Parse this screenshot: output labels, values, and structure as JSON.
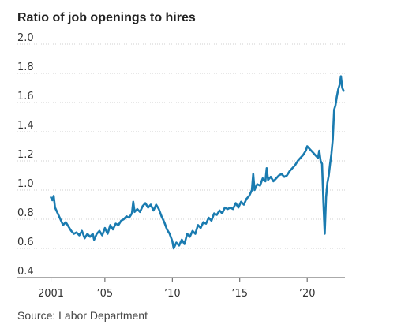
{
  "chart_data": {
    "type": "line",
    "title": "Ratio of job openings to hires",
    "source": "Source: Labor Department",
    "xlabel": "",
    "ylabel": "",
    "xlim": [
      2000.5,
      2022.8
    ],
    "ylim": [
      0.4,
      2.0
    ],
    "yticks": [
      0.4,
      0.6,
      0.8,
      1.0,
      1.2,
      1.4,
      1.6,
      1.8,
      2.0
    ],
    "ytick_labels": [
      "0.4",
      "0.6",
      "0.8",
      "1.0",
      "1.2",
      "1.4",
      "1.6",
      "1.8",
      "2.0"
    ],
    "xticks": [
      2001,
      2005,
      2010,
      2015,
      2020
    ],
    "xtick_labels": [
      "2001",
      "’05",
      "’10",
      "’15",
      "’20"
    ],
    "grid": true,
    "line_color": "#1a7bb0",
    "series": [
      {
        "points": [
          [
            2001.0,
            0.95
          ],
          [
            2001.1,
            0.93
          ],
          [
            2001.2,
            0.96
          ],
          [
            2001.3,
            0.88
          ],
          [
            2001.5,
            0.84
          ],
          [
            2001.7,
            0.8
          ],
          [
            2001.9,
            0.76
          ],
          [
            2002.1,
            0.78
          ],
          [
            2002.3,
            0.75
          ],
          [
            2002.5,
            0.72
          ],
          [
            2002.7,
            0.7
          ],
          [
            2002.9,
            0.71
          ],
          [
            2003.1,
            0.69
          ],
          [
            2003.3,
            0.72
          ],
          [
            2003.5,
            0.67
          ],
          [
            2003.7,
            0.7
          ],
          [
            2003.9,
            0.68
          ],
          [
            2004.1,
            0.7
          ],
          [
            2004.2,
            0.66
          ],
          [
            2004.4,
            0.7
          ],
          [
            2004.6,
            0.72
          ],
          [
            2004.8,
            0.69
          ],
          [
            2005.0,
            0.74
          ],
          [
            2005.2,
            0.7
          ],
          [
            2005.4,
            0.76
          ],
          [
            2005.6,
            0.73
          ],
          [
            2005.8,
            0.77
          ],
          [
            2006.0,
            0.76
          ],
          [
            2006.2,
            0.79
          ],
          [
            2006.4,
            0.8
          ],
          [
            2006.6,
            0.82
          ],
          [
            2006.8,
            0.81
          ],
          [
            2007.0,
            0.84
          ],
          [
            2007.1,
            0.92
          ],
          [
            2007.2,
            0.85
          ],
          [
            2007.4,
            0.87
          ],
          [
            2007.6,
            0.85
          ],
          [
            2007.8,
            0.89
          ],
          [
            2008.0,
            0.91
          ],
          [
            2008.2,
            0.88
          ],
          [
            2008.4,
            0.9
          ],
          [
            2008.6,
            0.86
          ],
          [
            2008.8,
            0.9
          ],
          [
            2009.0,
            0.87
          ],
          [
            2009.2,
            0.82
          ],
          [
            2009.4,
            0.78
          ],
          [
            2009.6,
            0.73
          ],
          [
            2009.8,
            0.7
          ],
          [
            2010.0,
            0.65
          ],
          [
            2010.1,
            0.6
          ],
          [
            2010.3,
            0.64
          ],
          [
            2010.5,
            0.62
          ],
          [
            2010.7,
            0.66
          ],
          [
            2010.9,
            0.63
          ],
          [
            2011.1,
            0.7
          ],
          [
            2011.3,
            0.68
          ],
          [
            2011.5,
            0.72
          ],
          [
            2011.7,
            0.7
          ],
          [
            2011.9,
            0.76
          ],
          [
            2012.1,
            0.74
          ],
          [
            2012.3,
            0.78
          ],
          [
            2012.5,
            0.77
          ],
          [
            2012.7,
            0.81
          ],
          [
            2012.9,
            0.79
          ],
          [
            2013.1,
            0.84
          ],
          [
            2013.3,
            0.83
          ],
          [
            2013.5,
            0.86
          ],
          [
            2013.7,
            0.84
          ],
          [
            2013.9,
            0.88
          ],
          [
            2014.1,
            0.87
          ],
          [
            2014.3,
            0.88
          ],
          [
            2014.5,
            0.87
          ],
          [
            2014.7,
            0.91
          ],
          [
            2014.9,
            0.88
          ],
          [
            2015.1,
            0.92
          ],
          [
            2015.3,
            0.9
          ],
          [
            2015.5,
            0.94
          ],
          [
            2015.7,
            0.96
          ],
          [
            2015.9,
            1.0
          ],
          [
            2016.0,
            1.11
          ],
          [
            2016.1,
            1.0
          ],
          [
            2016.3,
            1.04
          ],
          [
            2016.5,
            1.03
          ],
          [
            2016.7,
            1.08
          ],
          [
            2016.9,
            1.06
          ],
          [
            2017.0,
            1.15
          ],
          [
            2017.1,
            1.07
          ],
          [
            2017.3,
            1.09
          ],
          [
            2017.5,
            1.06
          ],
          [
            2017.7,
            1.08
          ],
          [
            2017.9,
            1.1
          ],
          [
            2018.1,
            1.11
          ],
          [
            2018.3,
            1.09
          ],
          [
            2018.5,
            1.1
          ],
          [
            2018.7,
            1.13
          ],
          [
            2018.9,
            1.15
          ],
          [
            2019.1,
            1.17
          ],
          [
            2019.3,
            1.2
          ],
          [
            2019.5,
            1.22
          ],
          [
            2019.7,
            1.24
          ],
          [
            2019.9,
            1.27
          ],
          [
            2020.0,
            1.3
          ],
          [
            2020.2,
            1.28
          ],
          [
            2020.4,
            1.26
          ],
          [
            2020.6,
            1.24
          ],
          [
            2020.8,
            1.22
          ],
          [
            2020.9,
            1.27
          ],
          [
            2021.0,
            1.2
          ],
          [
            2021.1,
            1.18
          ],
          [
            2021.2,
            0.92
          ],
          [
            2021.3,
            0.7
          ],
          [
            2021.4,
            0.95
          ],
          [
            2021.5,
            1.05
          ],
          [
            2021.6,
            1.1
          ],
          [
            2021.7,
            1.18
          ],
          [
            2021.8,
            1.25
          ],
          [
            2021.9,
            1.35
          ],
          [
            2022.0,
            1.55
          ],
          [
            2022.1,
            1.58
          ],
          [
            2022.2,
            1.64
          ],
          [
            2022.3,
            1.69
          ],
          [
            2022.4,
            1.72
          ],
          [
            2022.5,
            1.78
          ],
          [
            2022.6,
            1.7
          ],
          [
            2022.7,
            1.68
          ]
        ]
      }
    ]
  }
}
